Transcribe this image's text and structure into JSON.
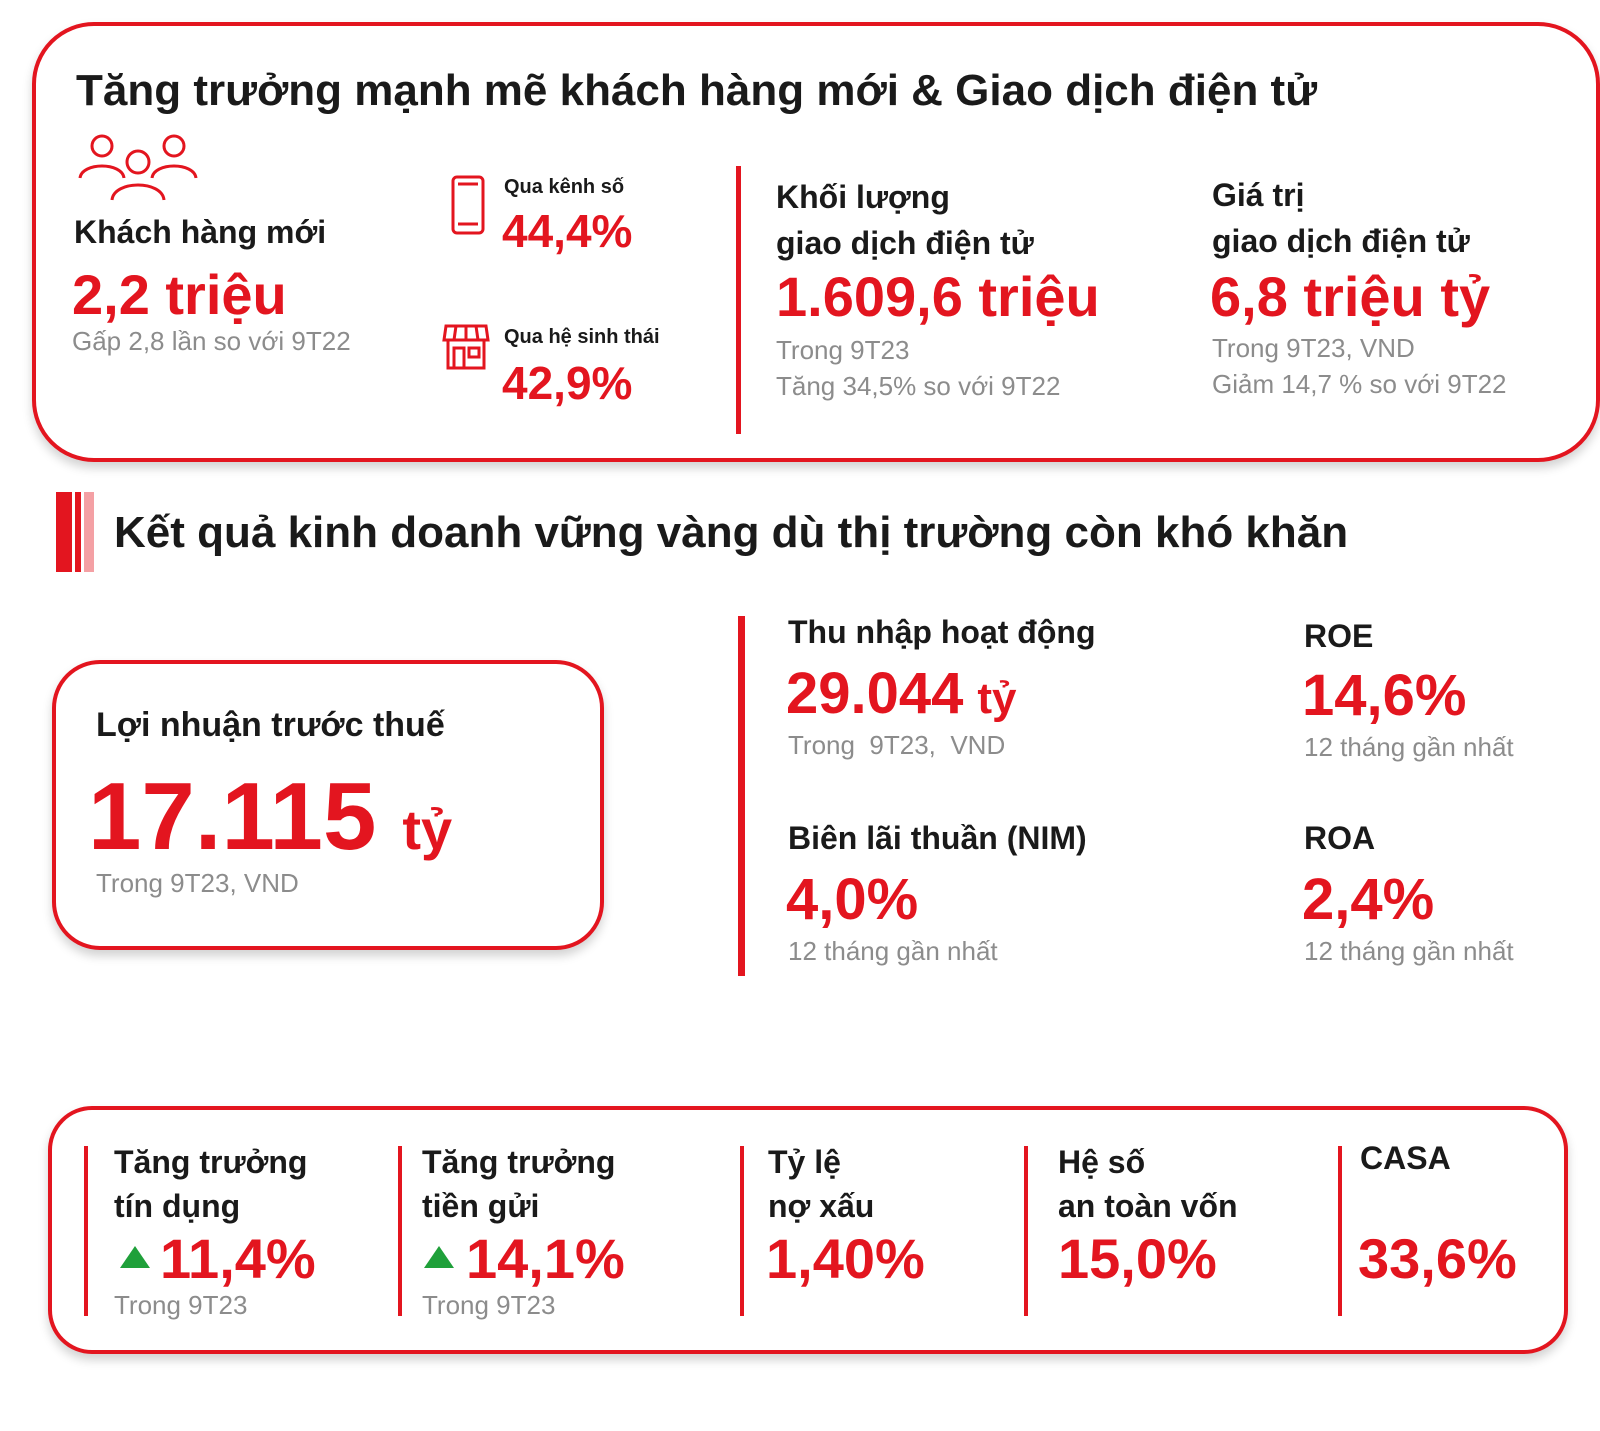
{
  "colors": {
    "accent": "#e3151f",
    "muted": "#8c8c8c",
    "text": "#1a1a1a",
    "up_arrow": "#1fa03a"
  },
  "digital": {
    "title": "Tăng trưởng mạnh mẽ khách hàng mới & Giao dịch điện tử",
    "new_customers": {
      "icon": "people-group-icon",
      "label": "Khách hàng mới",
      "value": "2,2 triệu",
      "note": "Gấp 2,8 lần so với 9T22"
    },
    "digital_channel": {
      "icon": "phone-icon",
      "label": "Qua kênh số",
      "value": "44,4%"
    },
    "ecosystem": {
      "icon": "store-icon",
      "label": "Qua hệ sinh thái",
      "value": "42,9%"
    },
    "volume": {
      "label_line1": "Khối lượng",
      "label_line2": "giao dịch điện tử",
      "value": "1.609,6 triệu",
      "note1": "Trong 9T23",
      "note2": "Tăng 34,5% so với 9T22"
    },
    "amount": {
      "label_line1": "Giá trị",
      "label_line2": "giao dịch điện tử",
      "value": "6,8 triệu tỷ",
      "note1": "Trong 9T23, VND",
      "note2": "Giảm 14,7 % so với 9T22"
    }
  },
  "business": {
    "title": "Kết quả kinh doanh vững vàng dù thị trường còn khó khăn",
    "pbt": {
      "label": "Lợi nhuận trước thuế",
      "value": "17.115",
      "unit": "tỷ",
      "note": "Trong 9T23, VND"
    },
    "operating_income": {
      "label": "Thu nhập hoạt động",
      "value": "29.044",
      "unit": "tỷ",
      "note": "Trong  9T23,  VND"
    },
    "roe": {
      "label": "ROE",
      "value": "14,6%",
      "note": "12 tháng gần nhất"
    },
    "nim": {
      "label": "Biên lãi thuần (NIM)",
      "value": "4,0%",
      "note": "12 tháng gần nhất"
    },
    "roa": {
      "label": "ROA",
      "value": "2,4%",
      "note": "12 tháng gần nhất"
    }
  },
  "metrics": {
    "credit": {
      "label_line1": "Tăng trưởng",
      "label_line2": "tín dụng",
      "value": "11,4%",
      "note": "Trong 9T23"
    },
    "deposit": {
      "label_line1": "Tăng trưởng",
      "label_line2": "tiền gửi",
      "value": "14,1%",
      "note": "Trong 9T23"
    },
    "npl": {
      "label_line1": "Tỷ lệ",
      "label_line2": "nợ xấu",
      "value": "1,40%"
    },
    "car": {
      "label_line1": "Hệ số",
      "label_line2": "an toàn vốn",
      "value": "15,0%"
    },
    "casa": {
      "label": "CASA",
      "value": "33,6%"
    }
  }
}
